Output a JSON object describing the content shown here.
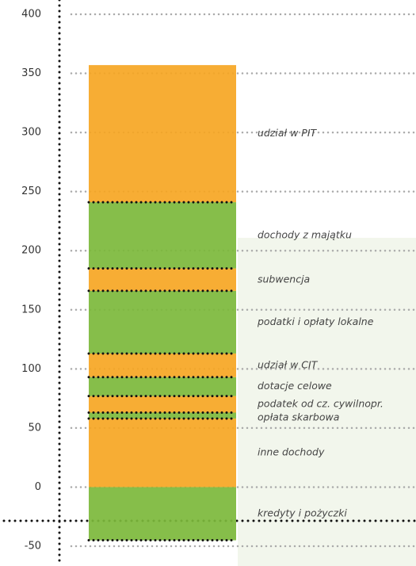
{
  "chart_data": {
    "type": "bar",
    "stacked": true,
    "categories": [
      null
    ],
    "series": [
      {
        "name": "kredyty i pożyczki",
        "color": "#7cb83b",
        "values": [
          -45
        ]
      },
      {
        "name": "inne dochody",
        "color": "#f6a623",
        "values": [
          58
        ]
      },
      {
        "name": "opłata skarbowa",
        "color": "#7cb83b",
        "values": [
          5
        ]
      },
      {
        "name": "podatek od cz. cywilnopr.",
        "color": "#f6a623",
        "values": [
          14
        ]
      },
      {
        "name": "dotacje celowe",
        "color": "#7cb83b",
        "values": [
          16
        ]
      },
      {
        "name": "udział w CIT",
        "color": "#f6a623",
        "values": [
          20
        ]
      },
      {
        "name": "podatki i opłaty lokalne",
        "color": "#7cb83b",
        "values": [
          53
        ]
      },
      {
        "name": "subwencja",
        "color": "#f6a623",
        "values": [
          19
        ]
      },
      {
        "name": "dochody z majątku",
        "color": "#7cb83b",
        "values": [
          56
        ]
      },
      {
        "name": "udział w PIT",
        "color": "#f6a623",
        "values": [
          116
        ]
      }
    ],
    "ylim": [
      -50,
      400
    ],
    "yticks": [
      -50,
      0,
      50,
      100,
      150,
      200,
      250,
      300,
      350,
      400
    ],
    "grid": true
  }
}
